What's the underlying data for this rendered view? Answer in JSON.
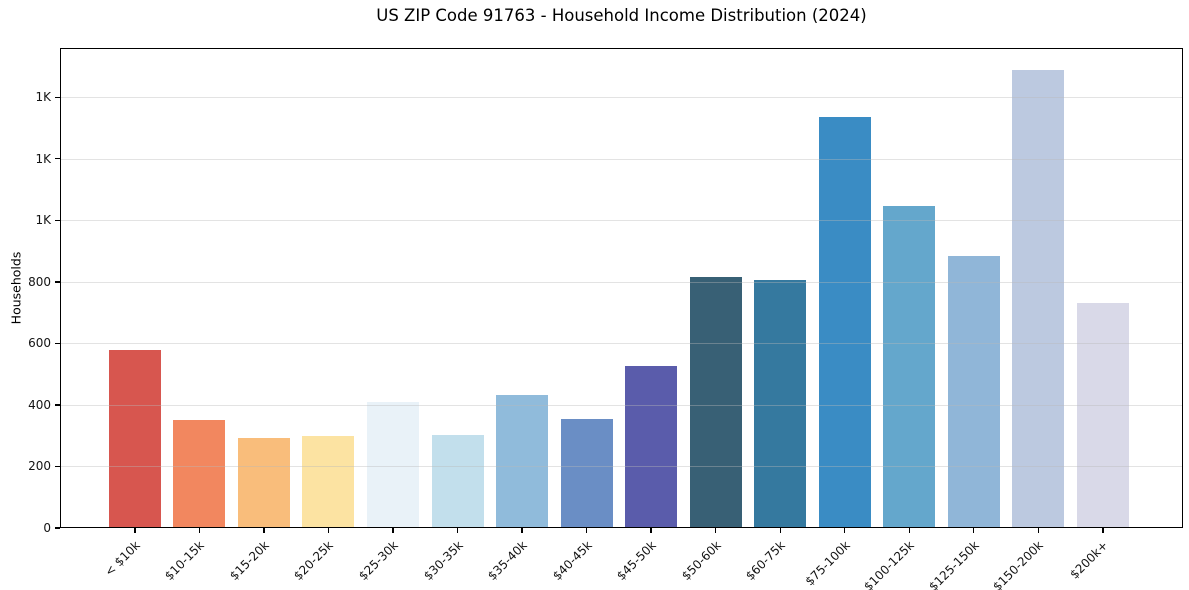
{
  "chart_data": {
    "type": "bar",
    "title": "US ZIP Code 91763 - Household Income Distribution (2024)",
    "xlabel": "",
    "ylabel": "Households",
    "categories": [
      "< $10k",
      "$10-15k",
      "$15-20k",
      "$20-25k",
      "$25-30k",
      "$30-35k",
      "$35-40k",
      "$40-45k",
      "$45-50k",
      "$50-60k",
      "$60-75k",
      "$75-100k",
      "$100-125k",
      "$125-150k",
      "$150-200k",
      "$200k+"
    ],
    "values": [
      580,
      352,
      292,
      300,
      410,
      302,
      432,
      353,
      528,
      815,
      805,
      1335,
      1045,
      885,
      1490,
      730
    ],
    "bar_colors": [
      "#d7564f",
      "#f2875f",
      "#f9bd7b",
      "#fce3a2",
      "#e9f2f8",
      "#c2dfec",
      "#90bbdb",
      "#6a8ec5",
      "#5a5cab",
      "#386075",
      "#35799f",
      "#3a8cc4",
      "#64a7cc",
      "#90b6d8",
      "#bcc9e0",
      "#d9d9e8"
    ],
    "ylim": [
      0,
      1560
    ],
    "yticks": [
      {
        "value": 0,
        "label": "0"
      },
      {
        "value": 200,
        "label": "200"
      },
      {
        "value": 400,
        "label": "400"
      },
      {
        "value": 600,
        "label": "600"
      },
      {
        "value": 800,
        "label": "800"
      },
      {
        "value": 1000,
        "label": "1K"
      },
      {
        "value": 1200,
        "label": "1K"
      },
      {
        "value": 1400,
        "label": "1K"
      }
    ],
    "grid": "horizontal",
    "grid_color": "rgba(185,185,185,0.40)",
    "spine_color": "#000000",
    "background_color": "#ffffff",
    "legend": "none"
  }
}
